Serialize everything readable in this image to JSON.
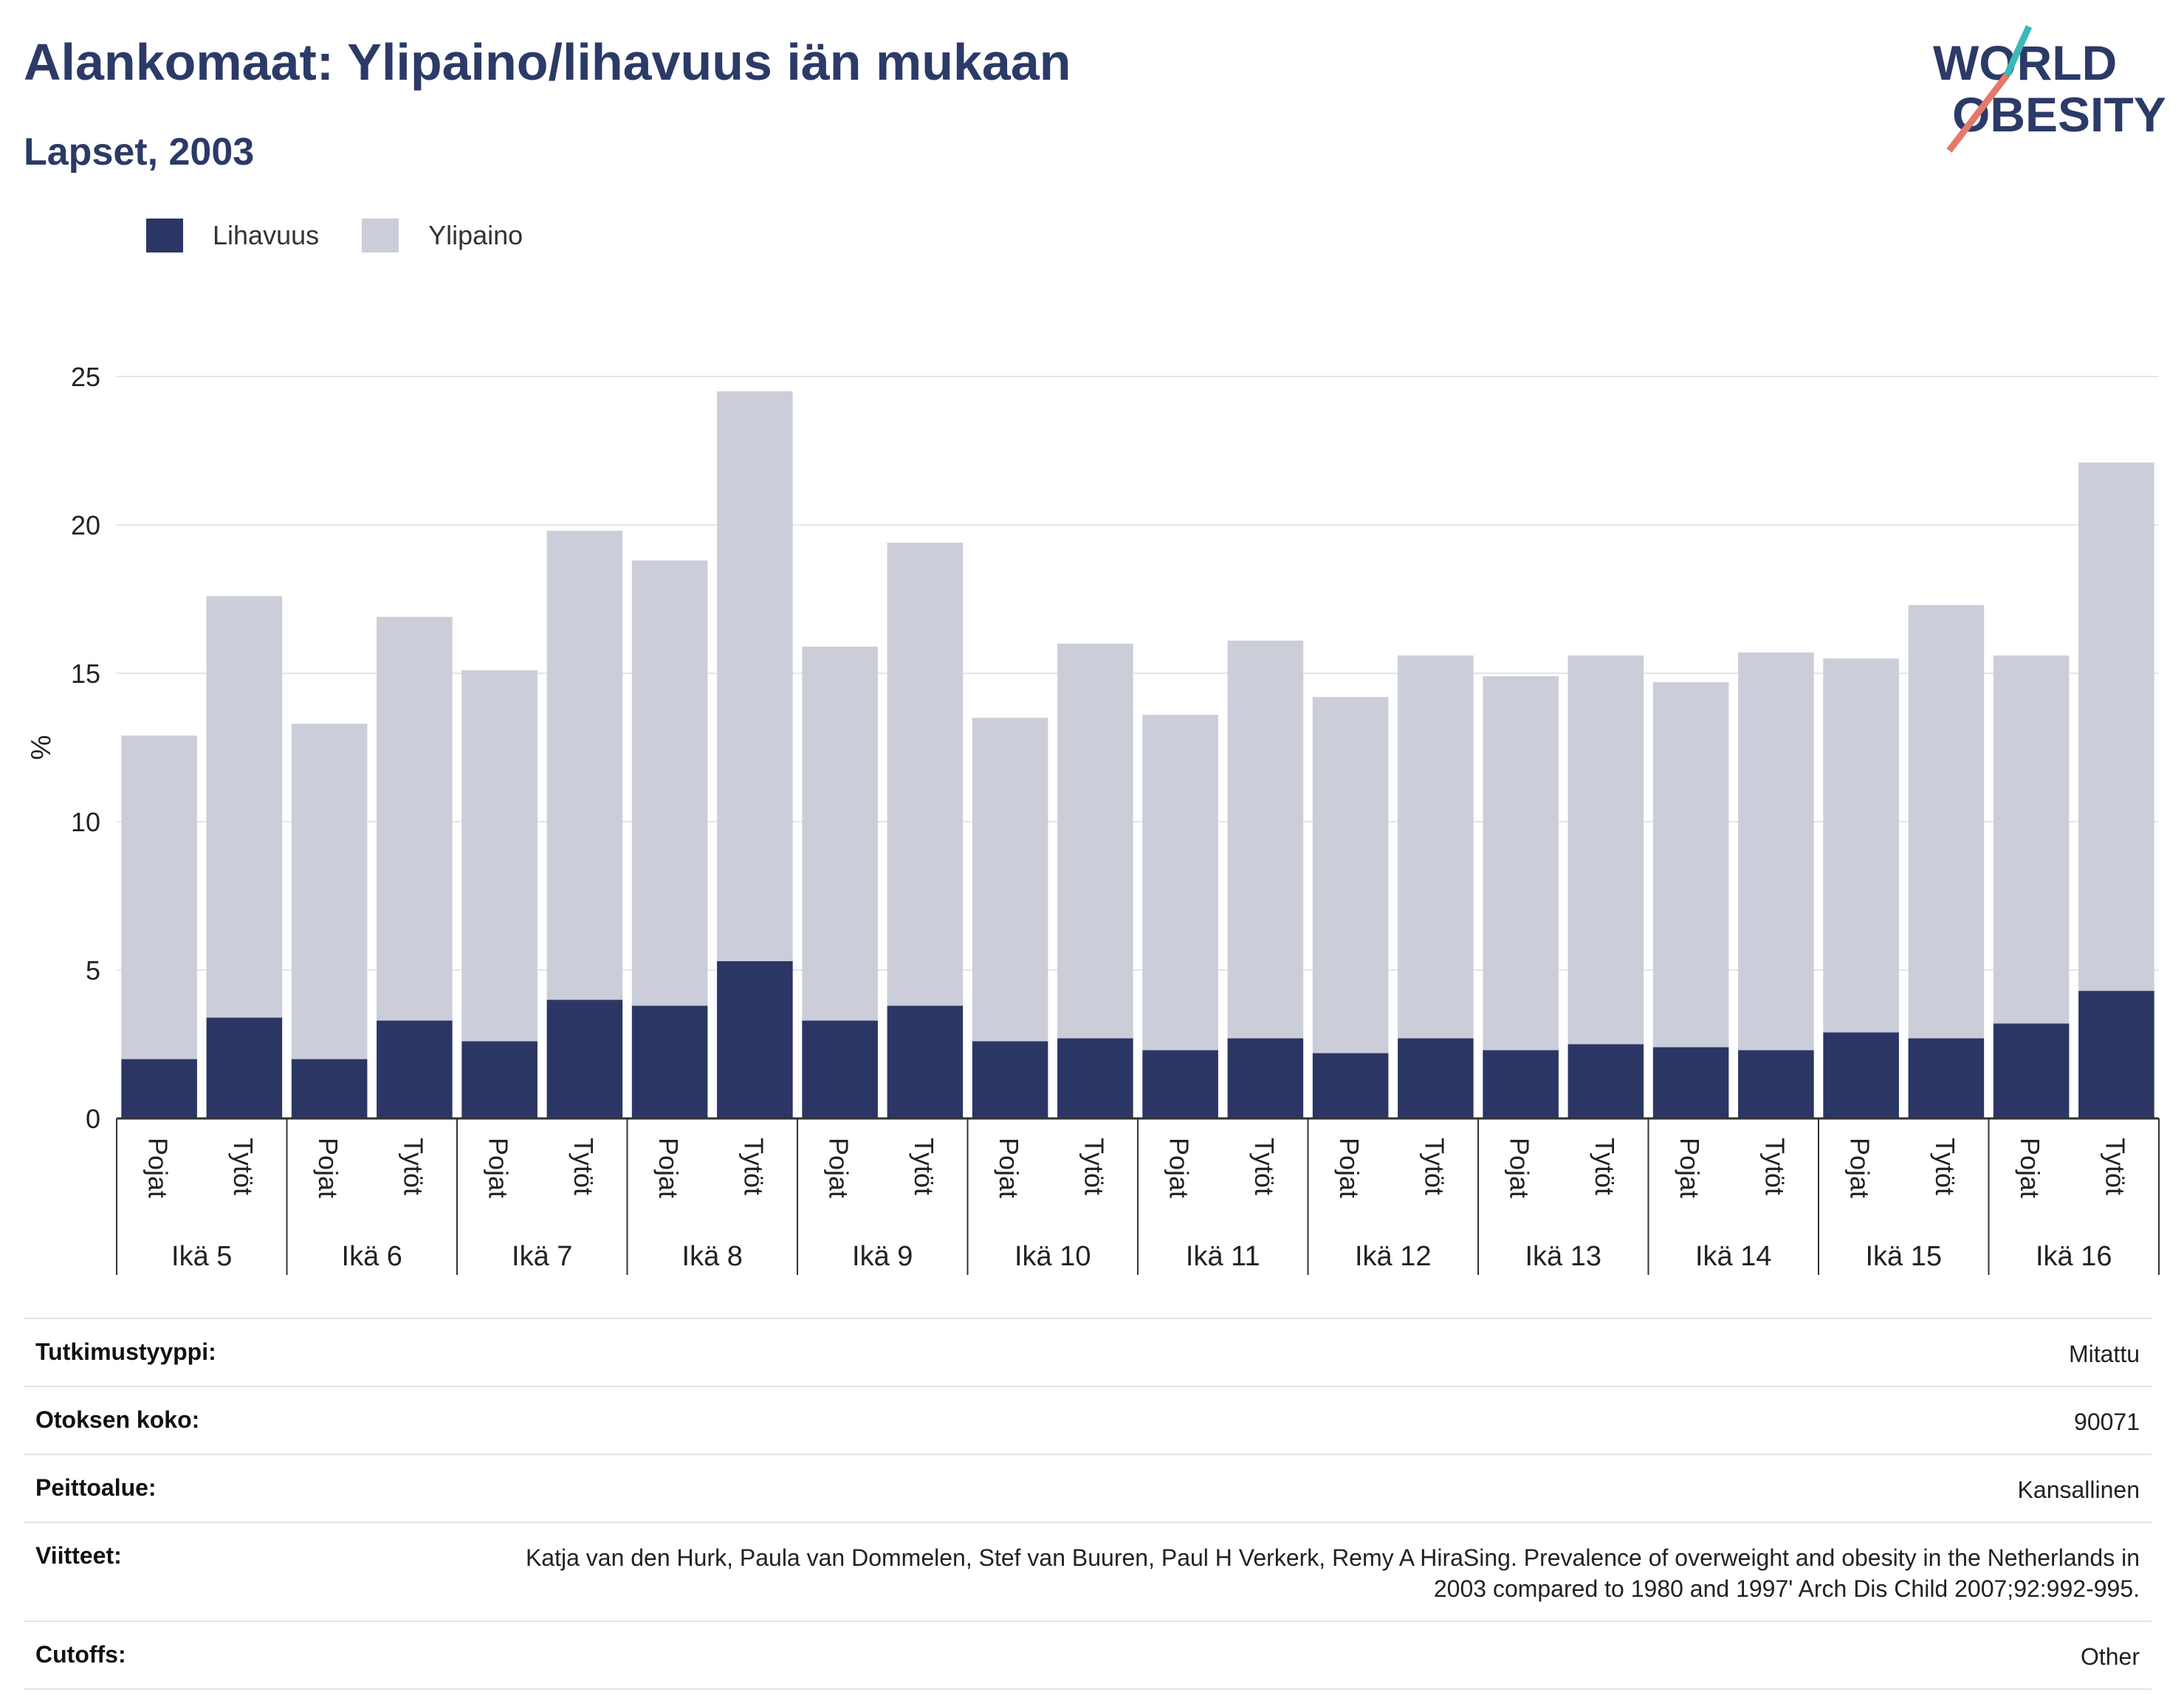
{
  "header": {
    "title": "Alankomaat: Ylipaino/lihavuus iän mukaan",
    "subtitle": "Lapset, 2003"
  },
  "logo": {
    "line1": "WORLD",
    "line2": "OBESITY"
  },
  "colors": {
    "lihavuus": "#2b3665",
    "ylipaino": "#cbcdd9",
    "title": "#2b3a67",
    "logo_teal": "#3bb8b8",
    "logo_coral": "#e5786a"
  },
  "chart_data": {
    "type": "bar",
    "stacked": true,
    "ylabel": "%",
    "ylim": [
      0,
      25
    ],
    "yticks": [
      0,
      5,
      10,
      15,
      20,
      25
    ],
    "grid": true,
    "legend_position": "top-left",
    "groups": [
      "Ikä 5",
      "Ikä 6",
      "Ikä 7",
      "Ikä 8",
      "Ikä 9",
      "Ikä 10",
      "Ikä 11",
      "Ikä 12",
      "Ikä 13",
      "Ikä 14",
      "Ikä 15",
      "Ikä 16"
    ],
    "subcategories": [
      "Pojat",
      "Tytöt"
    ],
    "series": [
      {
        "name": "Lihavuus",
        "values": [
          2.0,
          3.4,
          2.0,
          3.3,
          2.6,
          4.0,
          3.8,
          5.3,
          3.3,
          3.8,
          2.6,
          2.7,
          2.3,
          2.7,
          2.2,
          2.7,
          2.3,
          2.5,
          2.4,
          2.3,
          2.9,
          2.7,
          3.2,
          4.3
        ]
      },
      {
        "name": "Ylipaino",
        "values": [
          10.9,
          14.2,
          11.3,
          13.6,
          12.5,
          15.8,
          15.0,
          19.2,
          12.6,
          15.6,
          10.9,
          13.3,
          11.3,
          13.4,
          12.0,
          12.9,
          12.6,
          13.1,
          12.3,
          13.4,
          12.6,
          14.6,
          12.4,
          17.8
        ]
      }
    ]
  },
  "meta": [
    {
      "label": "Tutkimustyyppi:",
      "value": "Mitattu"
    },
    {
      "label": "Otoksen koko:",
      "value": "90071"
    },
    {
      "label": "Peittoalue:",
      "value": "Kansallinen"
    },
    {
      "label": "Viitteet:",
      "value": "Katja van den Hurk, Paula van Dommelen, Stef van Buuren, Paul H Verkerk, Remy A HiraSing. Prevalence of overweight and obesity in the Netherlands in 2003 compared to 1980 and 1997' Arch Dis Child 2007;92:992-995."
    },
    {
      "label": "Cutoffs:",
      "value": "Other"
    }
  ]
}
